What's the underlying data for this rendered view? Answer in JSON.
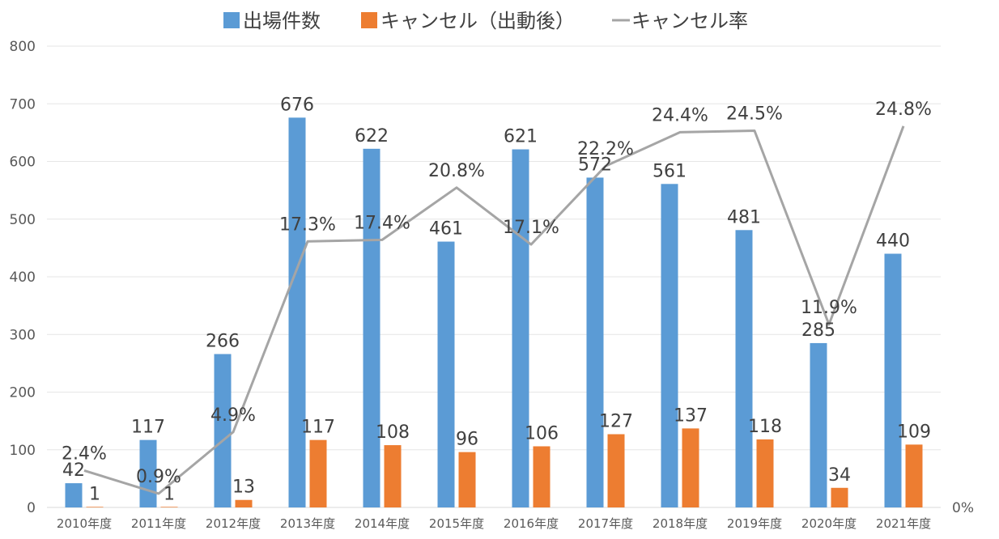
{
  "chart_data": {
    "type": "bar",
    "categories": [
      "2010年度",
      "2011年度",
      "2012年度",
      "2013年度",
      "2014年度",
      "2015年度",
      "2016年度",
      "2017年度",
      "2018年度",
      "2019年度",
      "2020年度",
      "2021年度"
    ],
    "series": [
      {
        "name": "出場件数",
        "kind": "bar",
        "axis": "left",
        "color": "#5B9BD5",
        "values": [
          42,
          117,
          266,
          676,
          622,
          461,
          621,
          572,
          561,
          481,
          285,
          440
        ],
        "labels": [
          "42",
          "117",
          "266",
          "676",
          "622",
          "461",
          "621",
          "572",
          "561",
          "481",
          "285",
          "440"
        ]
      },
      {
        "name": "キャンセル（出動後）",
        "kind": "bar",
        "axis": "left",
        "color": "#ED7D31",
        "values": [
          1,
          1,
          13,
          117,
          108,
          96,
          106,
          127,
          137,
          118,
          34,
          109
        ],
        "labels": [
          "1",
          "1",
          "13",
          "117",
          "108",
          "96",
          "106",
          "127",
          "137",
          "118",
          "34",
          "109"
        ]
      },
      {
        "name": "キャンセル率",
        "kind": "line",
        "axis": "right",
        "color": "#A5A5A5",
        "values": [
          2.4,
          0.9,
          4.9,
          17.3,
          17.4,
          20.8,
          17.1,
          22.2,
          24.4,
          24.5,
          11.9,
          24.8
        ],
        "labels": [
          "2.4%",
          "0.9%",
          "4.9%",
          "17.3%",
          "17.4%",
          "20.8%",
          "17.1%",
          "22.2%",
          "24.4%",
          "24.5%",
          "11.9%",
          "24.8%"
        ]
      }
    ],
    "y_left": {
      "ylim": [
        0,
        800
      ],
      "ticks": [
        "0",
        "100",
        "200",
        "300",
        "400",
        "500",
        "600",
        "700",
        "800"
      ]
    },
    "y_right": {
      "ylim": [
        0,
        30
      ],
      "ticks": [
        "0%"
      ]
    },
    "grid": true,
    "legend_position": "top"
  }
}
